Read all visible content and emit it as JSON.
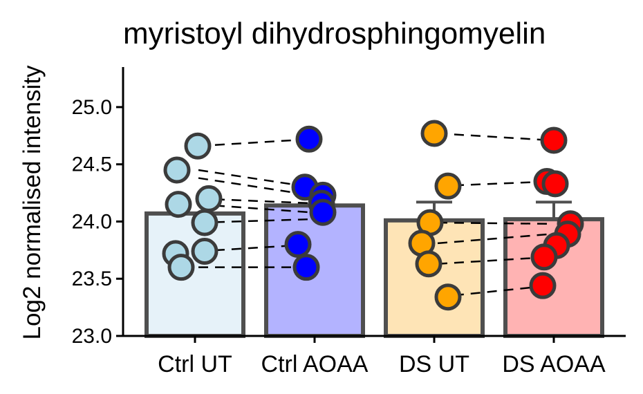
{
  "chart_data": {
    "type": "bar",
    "title": "myristoyl dihydrosphingomyelin",
    "ylabel": "Log2 normalised intensity",
    "xlabel": "",
    "ylim": [
      23.0,
      25.35
    ],
    "yticks": [
      "23.0",
      "23.5",
      "24.0",
      "24.5",
      "25.0"
    ],
    "categories": [
      "Ctrl UT",
      "Ctrl AOAA",
      "DS UT",
      "DS AOAA"
    ],
    "bar_fill": [
      "#e6f2f9",
      "#b3b3ff",
      "#fee4b6",
      "#ffb3b3"
    ],
    "point_fill": [
      "#add8e6",
      "#0000ff",
      "#ffa500",
      "#ff0000"
    ],
    "means": [
      24.07,
      24.14,
      24.01,
      24.02
    ],
    "errors": [
      0.0,
      0.0,
      0.16,
      0.15
    ],
    "points": [
      [
        24.66,
        24.45,
        24.2,
        24.15,
        23.99,
        23.74,
        23.72,
        23.6
      ],
      [
        24.72,
        24.3,
        24.23,
        24.16,
        24.08,
        23.8,
        23.6
      ],
      [
        24.77,
        24.31,
        23.99,
        23.81,
        23.63,
        23.34
      ],
      [
        24.71,
        24.35,
        24.33,
        23.98,
        23.89,
        23.79,
        23.69,
        23.44
      ]
    ],
    "pairs": [
      [
        24.66,
        24.72
      ],
      [
        24.45,
        24.3
      ],
      [
        24.38,
        24.23
      ],
      [
        24.2,
        24.16
      ],
      [
        24.15,
        24.08
      ],
      [
        23.99,
        24.02
      ],
      [
        23.74,
        23.8
      ],
      [
        23.6,
        23.6
      ],
      [
        24.77,
        24.71
      ],
      [
        24.31,
        24.35
      ],
      [
        23.99,
        23.98
      ],
      [
        23.81,
        23.89
      ],
      [
        23.63,
        23.69
      ],
      [
        23.34,
        23.44
      ]
    ],
    "grid": false,
    "legend": "none"
  }
}
